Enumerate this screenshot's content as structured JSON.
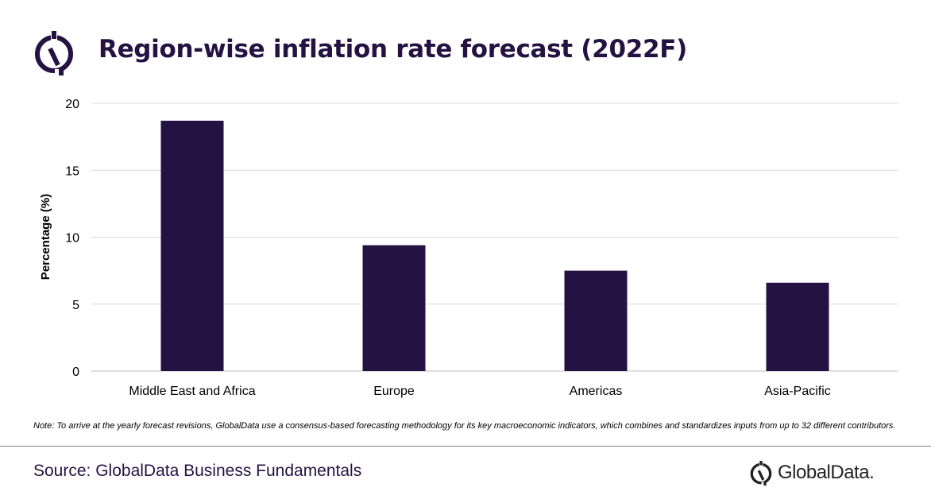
{
  "header": {
    "title": "Region-wise inflation rate forecast (2022F)",
    "logo_icon": "globaldata-logo-icon"
  },
  "chart_data": {
    "type": "bar",
    "title": "Region-wise inflation rate forecast (2022F)",
    "categories": [
      "Middle East and Africa",
      "Europe",
      "Americas",
      "Asia-Pacific"
    ],
    "values": [
      18.7,
      9.4,
      7.5,
      6.6
    ],
    "xlabel": "",
    "ylabel": "Percentage (%)",
    "ylim": [
      0,
      20
    ],
    "yticks": [
      "0",
      "5",
      "10",
      "15",
      "20"
    ],
    "grid": true,
    "legend": "none",
    "bar_color": "#241342"
  },
  "footer": {
    "note": "Note: To arrive at the yearly forecast revisions, GlobalData use a consensus-based forecasting methodology for its key macroeconomic indicators, which combines and standardizes inputs from up to 32 different contributors.",
    "source": "Source: GlobalData Business Fundamentals",
    "brand_name": "GlobalData.",
    "brand_icon": "globaldata-logo-icon"
  },
  "colors": {
    "brand": "#241342",
    "gridline": "#d9d9d9"
  }
}
